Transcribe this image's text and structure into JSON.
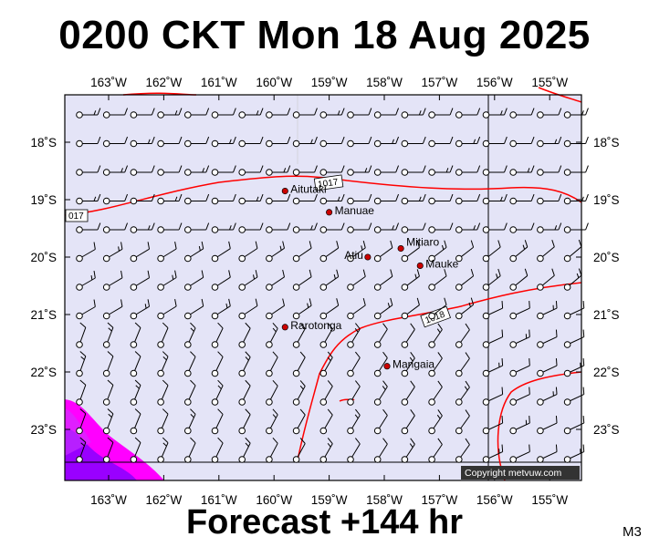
{
  "header": {
    "title": "0200 CKT Mon 18 Aug 2025"
  },
  "footer": {
    "forecast": "Forecast +144 hr",
    "model": "M3"
  },
  "credit": "Copyright metvuw.com",
  "map": {
    "longitudes": [
      "163˚W",
      "162˚W",
      "161˚W",
      "160˚W",
      "159˚W",
      "158˚W",
      "157˚W",
      "156˚W",
      "155˚W"
    ],
    "latitudes": [
      "18˚S",
      "19˚S",
      "20˚S",
      "21˚S",
      "22˚S",
      "23˚S"
    ],
    "towns": [
      {
        "name": "Aitutaki",
        "lon": -159.8,
        "lat": -18.85
      },
      {
        "name": "Manuae",
        "lon": -159.0,
        "lat": -19.22
      },
      {
        "name": "Mitiaro",
        "lon": -157.7,
        "lat": -19.85
      },
      {
        "name": "Atiu",
        "lon": -158.3,
        "lat": -20.0
      },
      {
        "name": "Mauke",
        "lon": -157.35,
        "lat": -20.15
      },
      {
        "name": "Rarotonga",
        "lon": -159.8,
        "lat": -21.22
      },
      {
        "name": "Mangaia",
        "lon": -157.95,
        "lat": -21.9
      }
    ],
    "isobar_labels": [
      "1017",
      "017",
      "1018"
    ],
    "colors": {
      "ocean": "#e4e4f7",
      "isobar": "#ff0000",
      "town": "#cc0000",
      "rain_light": "#ff00ff",
      "rain_heavy": "#9900ff"
    }
  }
}
